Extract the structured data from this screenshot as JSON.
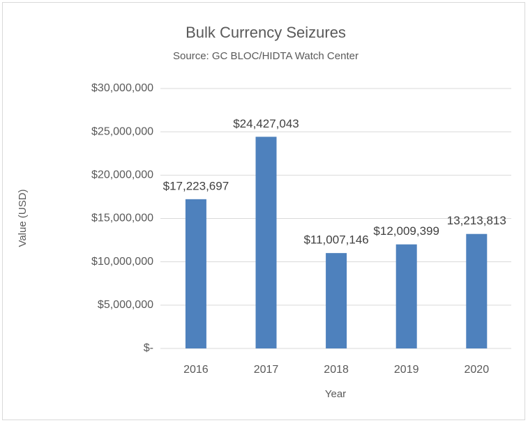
{
  "chart_data": {
    "type": "bar",
    "title": "Bulk Currency Seizures",
    "subtitle": "Source: GC BLOC/HIDTA Watch Center",
    "x_label": "Year",
    "y_label": "Value (USD)",
    "categories": [
      "2016",
      "2017",
      "2018",
      "2019",
      "2020"
    ],
    "values": [
      17223697,
      24427043,
      11007146,
      12009399,
      13213813
    ],
    "value_labels": [
      "$17,223,697",
      "$24,427,043",
      "$11,007,146",
      "$12,009,399",
      "13,213,813"
    ],
    "color": "#4e81bd",
    "ylim": [
      0,
      30000000
    ],
    "yticks": [
      {
        "value": 0,
        "label": "$-"
      },
      {
        "value": 5000000,
        "label": "$5,000,000"
      },
      {
        "value": 10000000,
        "label": "$10,000,000"
      },
      {
        "value": 15000000,
        "label": "$15,000,000"
      },
      {
        "value": 20000000,
        "label": "$20,000,000"
      },
      {
        "value": 25000000,
        "label": "$25,000,000"
      },
      {
        "value": 30000000,
        "label": "$30,000,000"
      }
    ],
    "grid": true
  }
}
